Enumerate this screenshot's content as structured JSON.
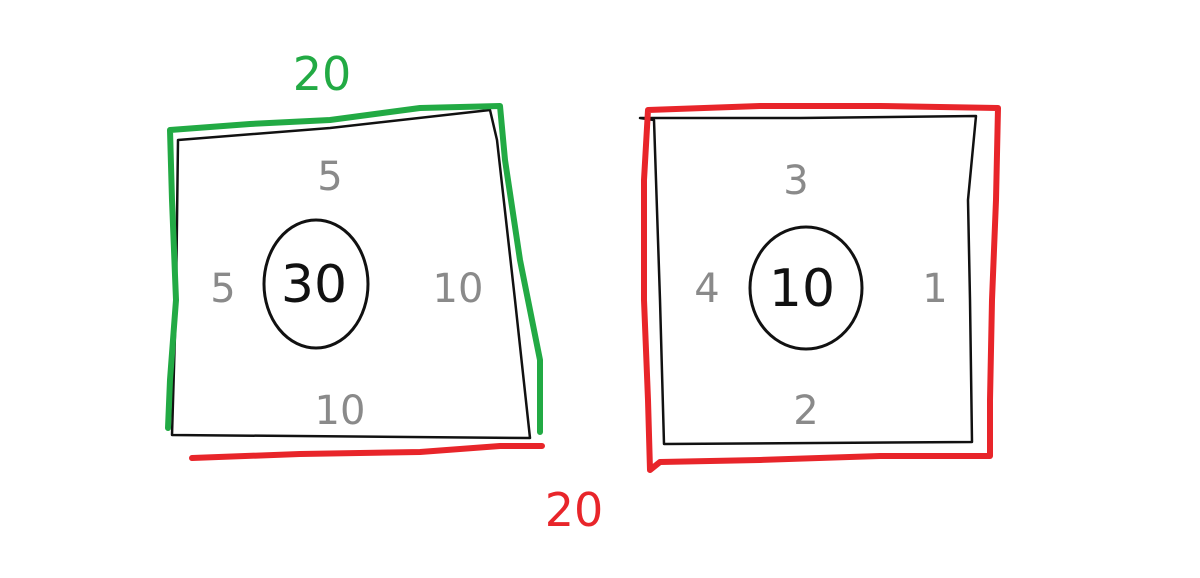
{
  "colors": {
    "background": "#ffffff",
    "ink": "#111111",
    "gray": "#8a8a8a",
    "green": "#22aa44",
    "red": "#e8252a"
  },
  "left_square": {
    "top": "5",
    "left": "5",
    "right": "10",
    "bottom": "10",
    "center": "30",
    "highlight_green_label": "20",
    "highlight_red_label": "20"
  },
  "right_square": {
    "top": "3",
    "left": "4",
    "right": "1",
    "bottom": "2",
    "center": "10"
  }
}
